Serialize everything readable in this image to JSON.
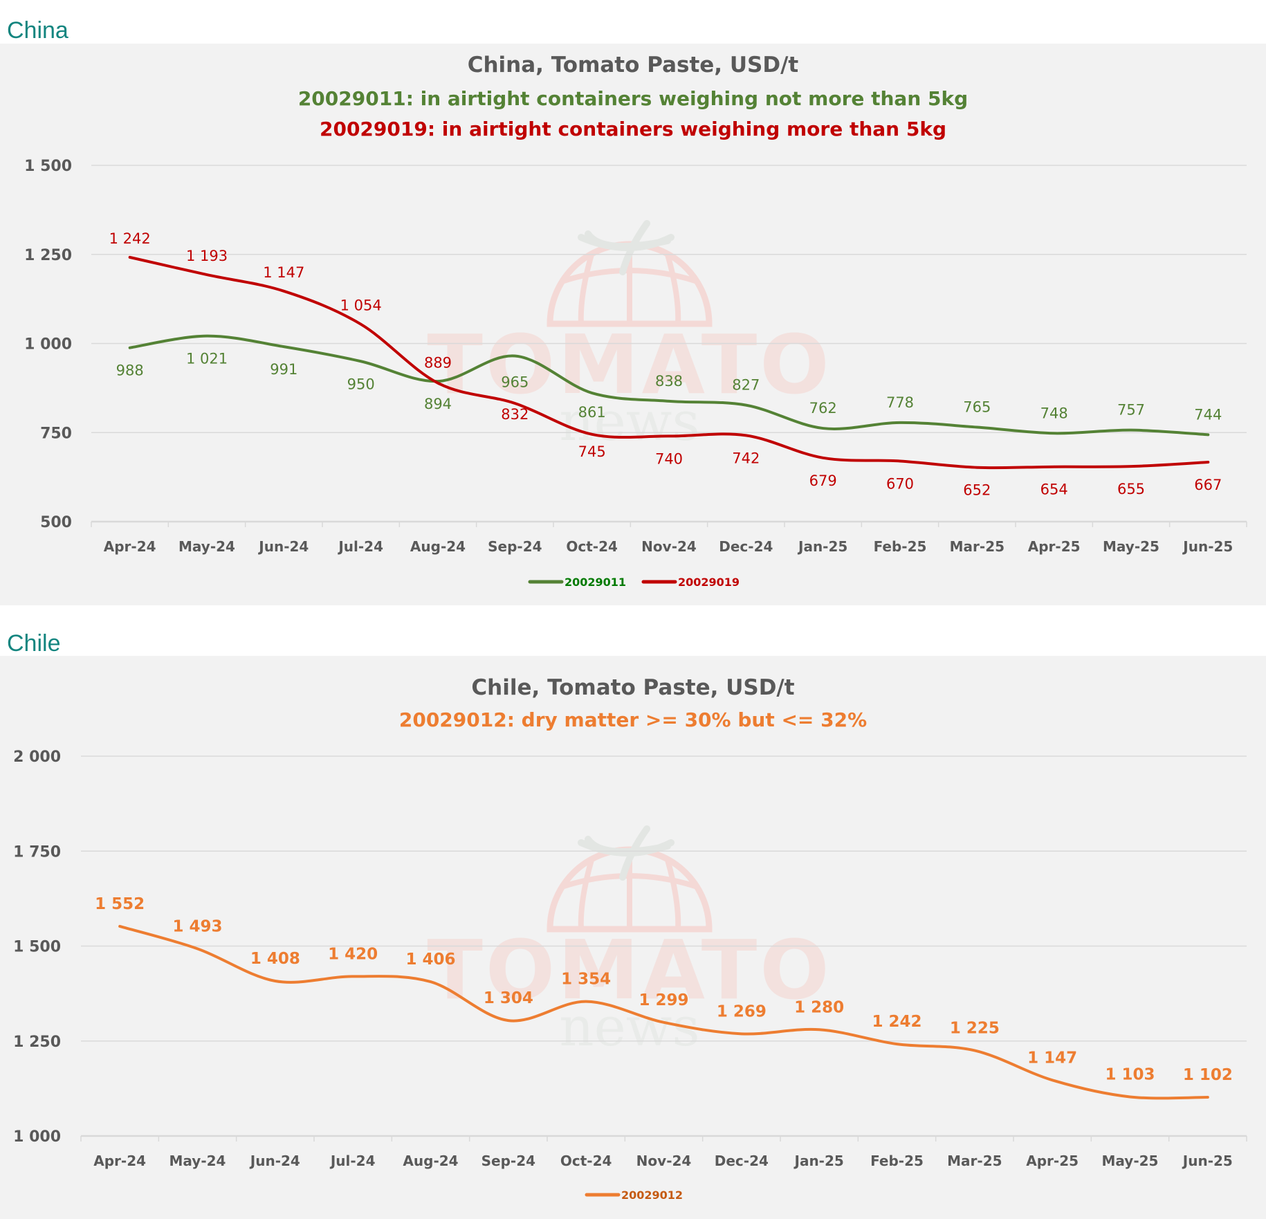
{
  "sections": [
    {
      "label": "China"
    },
    {
      "label": "Chile"
    }
  ],
  "watermark": {
    "brand": "TOMATO",
    "sub": "news"
  },
  "chart_data": [
    {
      "type": "line",
      "title": "China, Tomato Paste, USD/t",
      "subtitles": [
        {
          "text": "20029011: in airtight containers weighing not more than 5kg",
          "color": "#548235"
        },
        {
          "text": "20029019: in airtight containers weighing more than 5kg",
          "color": "#c00000"
        }
      ],
      "categories": [
        "Apr-24",
        "May-24",
        "Jun-24",
        "Jul-24",
        "Aug-24",
        "Sep-24",
        "Oct-24",
        "Nov-24",
        "Dec-24",
        "Jan-25",
        "Feb-25",
        "Mar-25",
        "Apr-25",
        "May-25",
        "Jun-25"
      ],
      "yticks": [
        500,
        750,
        1000,
        1250,
        1500
      ],
      "ytick_labels": [
        "500",
        "750",
        "1 000",
        "1 250",
        "1 500"
      ],
      "ylim": [
        500,
        1500
      ],
      "grid": true,
      "legend": "bottom",
      "series": [
        {
          "name": "20029011",
          "color": "#548235",
          "legend_text_color": "#007a00",
          "values": [
            988,
            1021,
            991,
            950,
            894,
            965,
            861,
            838,
            827,
            762,
            778,
            765,
            748,
            757,
            744
          ],
          "labels": [
            "988",
            "1 021",
            "991",
            "950",
            "894",
            "965",
            "861",
            "838",
            "827",
            "762",
            "778",
            "765",
            "748",
            "757",
            "744"
          ]
        },
        {
          "name": "20029019",
          "color": "#c00000",
          "legend_text_color": "#c00000",
          "values": [
            1242,
            1193,
            1147,
            1054,
            889,
            832,
            745,
            740,
            742,
            679,
            670,
            652,
            654,
            655,
            667
          ],
          "labels": [
            "1 242",
            "1 193",
            "1 147",
            "1 054",
            "889",
            "832",
            "745",
            "740",
            "742",
            "679",
            "670",
            "652",
            "654",
            "655",
            "667"
          ]
        }
      ]
    },
    {
      "type": "line",
      "title": "Chile, Tomato Paste, USD/t",
      "subtitles": [
        {
          "text": "20029012: dry matter >= 30% but <= 32%",
          "color": "#ed7d31"
        }
      ],
      "categories": [
        "Apr-24",
        "May-24",
        "Jun-24",
        "Jul-24",
        "Aug-24",
        "Sep-24",
        "Oct-24",
        "Nov-24",
        "Dec-24",
        "Jan-25",
        "Feb-25",
        "Mar-25",
        "Apr-25",
        "May-25",
        "Jun-25"
      ],
      "yticks": [
        1000,
        1250,
        1500,
        1750,
        2000
      ],
      "ytick_labels": [
        "1 000",
        "1 250",
        "1 500",
        "1 750",
        "2 000"
      ],
      "ylim": [
        1000,
        2000
      ],
      "grid": true,
      "legend": "bottom",
      "series": [
        {
          "name": "20029012",
          "color": "#ed7d31",
          "legend_text_color": "#c55a11",
          "values": [
            1552,
            1493,
            1408,
            1420,
            1406,
            1304,
            1354,
            1299,
            1269,
            1280,
            1242,
            1225,
            1147,
            1103,
            1102
          ],
          "labels": [
            "1 552",
            "1 493",
            "1 408",
            "1 420",
            "1 406",
            "1 304",
            "1 354",
            "1 299",
            "1 269",
            "1 280",
            "1 242",
            "1 225",
            "1 147",
            "1 103",
            "1 102"
          ]
        }
      ]
    }
  ]
}
